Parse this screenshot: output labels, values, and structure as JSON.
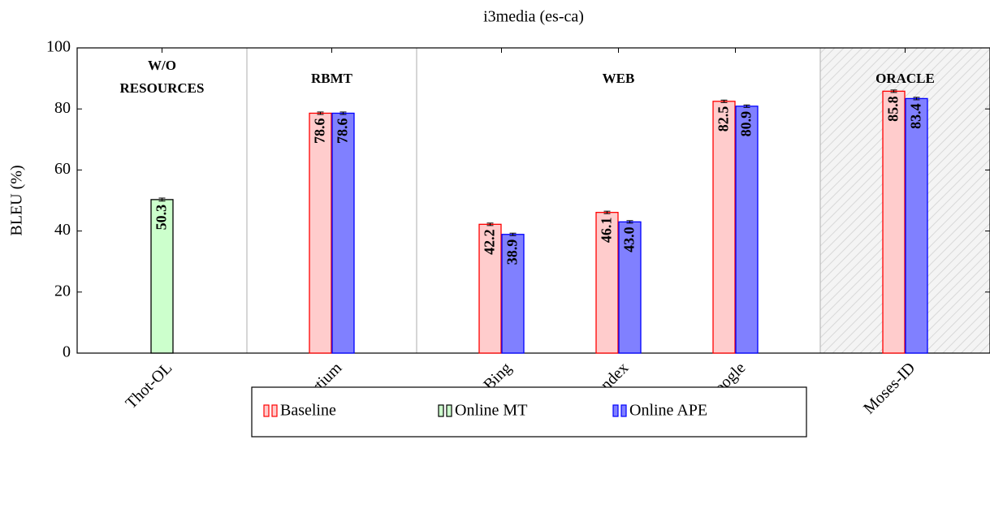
{
  "chart_data": {
    "type": "bar",
    "title": "i3media (es-ca)",
    "ylabel": "BLEU (%)",
    "categories": [
      "Thot-OL",
      "Apertium",
      "Bing",
      "Yandex",
      "Google",
      "Moses-ID"
    ],
    "groups": [
      {
        "label": [
          "W/O",
          "RESOURCES"
        ],
        "categories": [
          "Thot-OL"
        ],
        "shaded": false
      },
      {
        "label": [
          "RBMT"
        ],
        "categories": [
          "Apertium"
        ],
        "shaded": false
      },
      {
        "label": [
          "WEB"
        ],
        "categories": [
          "Bing",
          "Yandex",
          "Google"
        ],
        "shaded": false
      },
      {
        "label": [
          "ORACLE"
        ],
        "categories": [
          "Moses-ID"
        ],
        "shaded": true
      }
    ],
    "series": [
      {
        "name": "Baseline",
        "color": "#ff0000",
        "fill": "#ffcccc",
        "label_color": "#ff0000",
        "values": [
          null,
          78.6,
          42.2,
          46.1,
          82.5,
          85.8
        ],
        "errors": [
          null,
          0.4,
          0.4,
          0.4,
          0.4,
          0.4
        ]
      },
      {
        "name": "Online MT",
        "color": "#000000",
        "fill": "#ccffcc",
        "label_color": "#000000",
        "values": [
          50.3,
          null,
          null,
          null,
          null,
          null
        ],
        "errors": [
          0.5,
          null,
          null,
          null,
          null,
          null
        ]
      },
      {
        "name": "Online APE",
        "color": "#0000ff",
        "fill": "#8080ff",
        "label_color": "#ffffff",
        "values": [
          null,
          78.6,
          38.9,
          43.0,
          80.9,
          83.4
        ],
        "value_labels": [
          null,
          "78.6",
          "38.9",
          "43.0",
          "80.9",
          "83.4"
        ],
        "errors": [
          null,
          0.4,
          0.4,
          0.4,
          0.4,
          0.4
        ]
      }
    ],
    "ylim": [
      0,
      100
    ],
    "yticks": [
      0,
      20,
      40,
      60,
      80,
      100
    ],
    "legend": "bottom"
  }
}
